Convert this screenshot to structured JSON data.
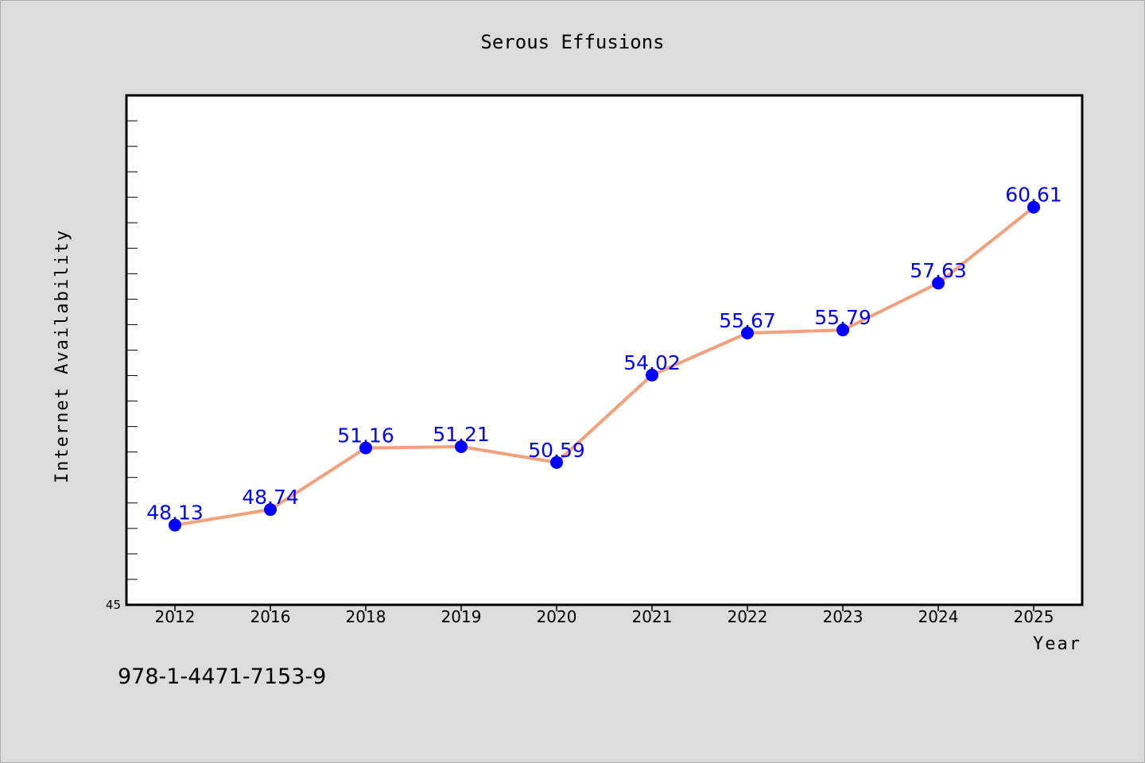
{
  "chart_data": {
    "type": "line",
    "title": "Serous Effusions",
    "xlabel": "Year",
    "ylabel": "Internet Availability",
    "categories": [
      "2012",
      "2016",
      "2018",
      "2019",
      "2020",
      "2021",
      "2022",
      "2023",
      "2024",
      "2025"
    ],
    "series": [
      {
        "values": [
          48.13,
          48.74,
          51.16,
          51.21,
          50.59,
          54.02,
          55.67,
          55.79,
          57.63,
          60.61
        ]
      }
    ],
    "data_labels": [
      "48.13",
      "48.74",
      "51.16",
      "51.21",
      "50.59",
      "54.02",
      "55.67",
      "55.79",
      "57.63",
      "60.61"
    ],
    "ylim": [
      45,
      65
    ],
    "y_tick_labels": [
      "45"
    ],
    "grid": false,
    "line_color": "#f4a07a",
    "marker_color": "#0000ff",
    "label_color": "#0000ff",
    "background_color": "#dcdcdc",
    "plot_background_color": "#ffffff"
  },
  "footer": {
    "isbn": "978-1-4471-7153-9"
  }
}
